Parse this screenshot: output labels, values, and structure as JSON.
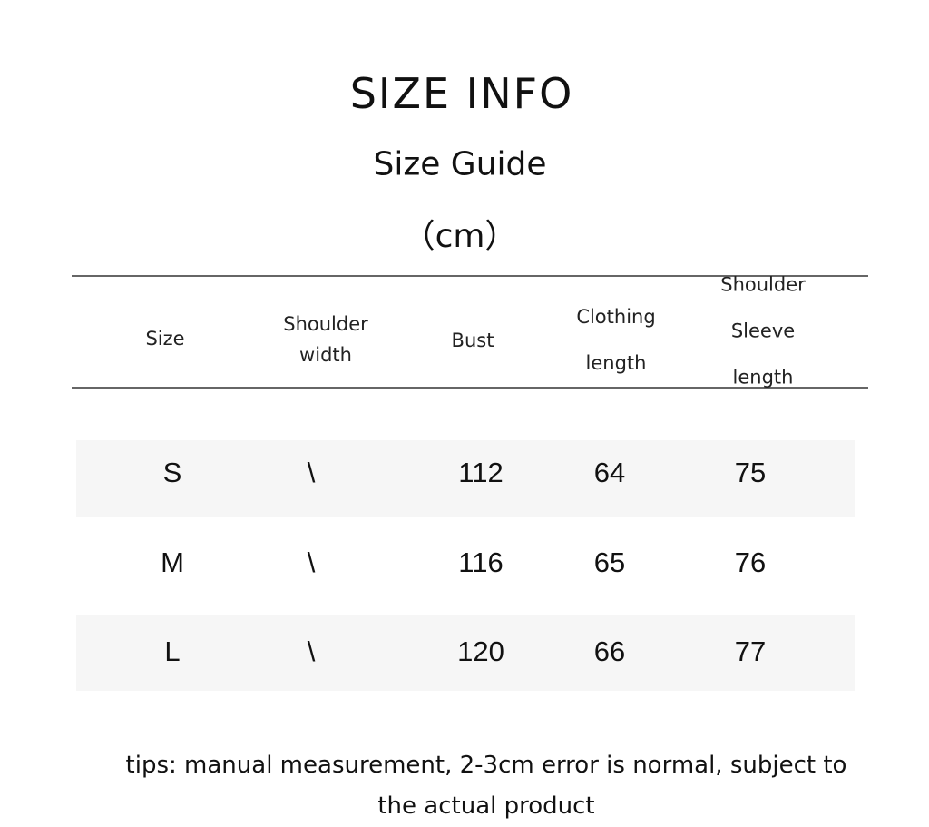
{
  "title": "SIZE INFO",
  "subtitle": "Size Guide",
  "unit": "（cm）",
  "table": {
    "headers": [
      [
        "Size"
      ],
      [
        "Shoulder",
        "width"
      ],
      [
        "Bust"
      ],
      [
        "Clothing",
        "length"
      ],
      [
        "Shoulder",
        "Sleeve",
        "length"
      ]
    ],
    "rows": [
      [
        "S",
        "\\",
        "112",
        "64",
        "75"
      ],
      [
        "M",
        "\\",
        "116",
        "65",
        "76"
      ],
      [
        "L",
        "\\",
        "120",
        "66",
        "77"
      ]
    ]
  },
  "tips": {
    "line1": "tips: manual measurement, 2-3cm error is normal, subject to",
    "line2": "the actual product"
  }
}
